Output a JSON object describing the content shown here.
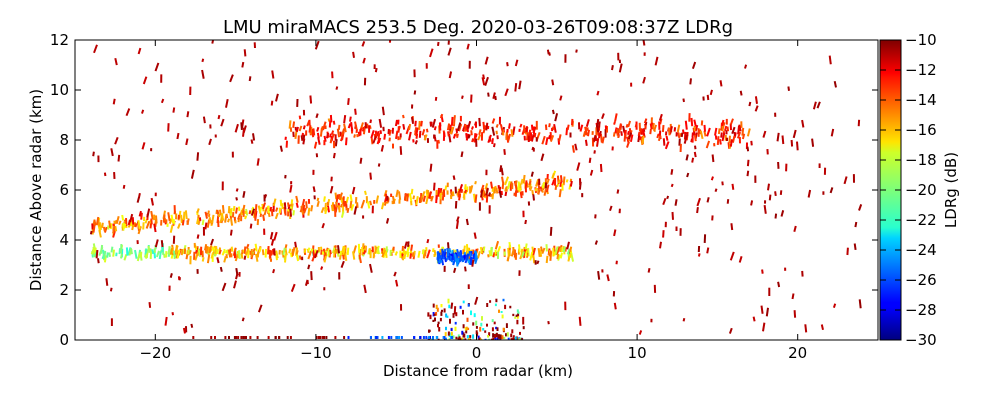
{
  "chart_data": {
    "type": "scatter",
    "title": "LMU miraMACS 253.5 Deg. 2020-03-26T09:08:37Z  LDRg",
    "xlabel": "Distance from radar (km)",
    "ylabel": "Distance Above radar  (km)",
    "xlim": [
      -25,
      25
    ],
    "ylim": [
      0,
      12
    ],
    "xticks": [
      -20,
      -10,
      0,
      10,
      20
    ],
    "xtick_labels": [
      "−20",
      "−10",
      "0",
      "10",
      "20"
    ],
    "yticks": [
      0,
      2,
      4,
      6,
      8,
      10,
      12
    ],
    "ytick_labels": [
      "0",
      "2",
      "4",
      "6",
      "8",
      "10",
      "12"
    ],
    "grid": false,
    "colorbar": {
      "label": "LDRg (dB)",
      "colormap": "jet",
      "range": [
        -30,
        -10
      ],
      "ticks": [
        -10,
        -12,
        -14,
        -16,
        -18,
        -20,
        -22,
        -24,
        -26,
        -28,
        -30
      ],
      "tick_labels": [
        "−10",
        "−12",
        "−14",
        "−16",
        "−18",
        "−20",
        "−22",
        "−24",
        "−26",
        "−28",
        "−30"
      ]
    },
    "value_units": "dB",
    "layers": [
      {
        "name": "upper cloud 7.5-9 km",
        "x_range": [
          -12,
          17
        ],
        "height_km": 8.3,
        "thickness_km": 1.3,
        "ldr_range": [
          -17,
          -10
        ],
        "typical_ldr": -13
      },
      {
        "name": "slanted band 4-6.5 km",
        "x_range": [
          -24,
          6
        ],
        "height_km_start": 4.5,
        "height_km_end": 6.3,
        "ldr_range": [
          -22,
          -12
        ],
        "typical_ldr": -15
      },
      {
        "name": "low layer 3-4 km",
        "x_range": [
          -24,
          6
        ],
        "height_km": 3.5,
        "ldr_range": [
          -25,
          -13
        ],
        "typical_ldr": -16
      },
      {
        "name": "blue core",
        "x_range": [
          -2.5,
          0
        ],
        "height_km": 3.3,
        "ldr_range": [
          -28,
          -22
        ],
        "typical_ldr": -26
      },
      {
        "name": "sparse precipitation streaks",
        "x_range": [
          -24,
          24
        ],
        "height_km_range": [
          0,
          12
        ],
        "ldr_range": [
          -12,
          -10
        ],
        "typical_ldr": -11
      }
    ]
  }
}
